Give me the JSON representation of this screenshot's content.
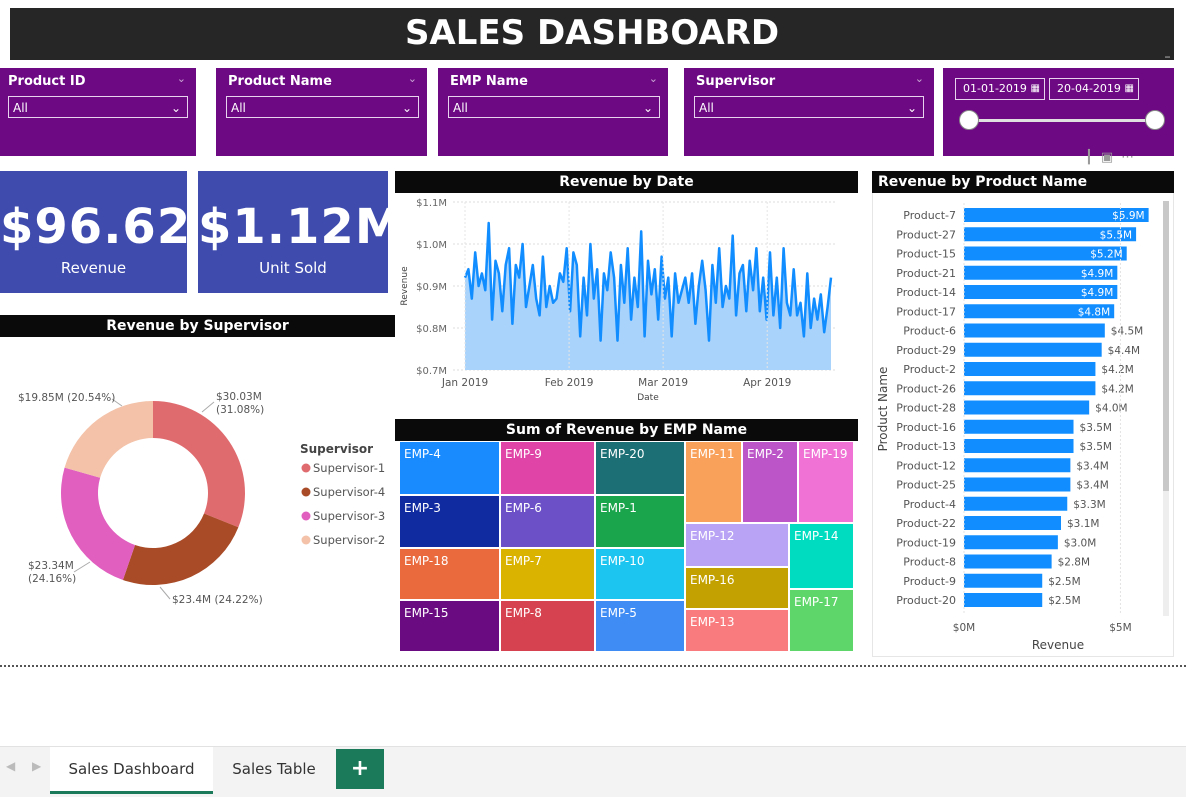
{
  "dashboard": {
    "title": "SALES DASHBOARD"
  },
  "filters": {
    "product_id": {
      "label": "Product ID",
      "value": "All"
    },
    "product_name": {
      "label": "Product Name",
      "value": "All"
    },
    "emp_name": {
      "label": "EMP Name",
      "value": "All"
    },
    "supervisor": {
      "label": "Supervisor",
      "value": "All"
    },
    "date_range": {
      "start": "01-01-2019",
      "end": "20-04-2019",
      "start_fraction": 0.0,
      "end_fraction": 1.0
    }
  },
  "kpis": {
    "revenue": {
      "value": "$96.62...",
      "caption": "Revenue"
    },
    "units": {
      "value": "$1.12M",
      "caption": "Unit Sold"
    }
  },
  "colors": {
    "slicer_bg": "#6d0a83",
    "kpi_bg": "#3f4cae",
    "line": "#118dff",
    "area": "#a9d3fb",
    "bar": "#118dff",
    "tab_accent": "#1b7a5a"
  },
  "charts": {
    "donut_title": "Revenue by Supervisor",
    "line_title": "Revenue by Date",
    "treemap_title": "Sum of Revenue by EMP Name",
    "bar_title": "Revenue by Product Name"
  },
  "chart_data": [
    {
      "type": "pie",
      "title": "Revenue by Supervisor",
      "legend_title": "Supervisor",
      "legend_position": "right",
      "hole": true,
      "slices": [
        {
          "name": "Supervisor-1",
          "value": 30.03,
          "label": "$30.03M",
          "pct": "(31.08%)",
          "color": "#e06b6f"
        },
        {
          "name": "Supervisor-4",
          "value": 23.4,
          "label": "$23.4M (24.22%)",
          "pct": "",
          "color": "#a94b27"
        },
        {
          "name": "Supervisor-3",
          "value": 23.34,
          "label": "$23.34M",
          "pct": "(24.16%)",
          "color": "#e05fbf"
        },
        {
          "name": "Supervisor-2",
          "value": 19.85,
          "label": "$19.85M (20.54%)",
          "pct": "",
          "color": "#f3c2a8"
        }
      ]
    },
    {
      "type": "area",
      "title": "Revenue by Date",
      "xlabel": "Date",
      "ylabel": "Revenue",
      "ylim": [
        0.7,
        1.1
      ],
      "yticks": [
        "$0.7M",
        "$0.8M",
        "$0.9M",
        "$1.0M",
        "$1.1M"
      ],
      "yticks_values": [
        0.7,
        0.8,
        0.9,
        1.0,
        1.1
      ],
      "xticks": [
        "Jan 2019",
        "Feb 2019",
        "Mar 2019",
        "Apr 2019"
      ],
      "xticks_days": [
        0,
        31,
        59,
        90
      ],
      "y": [
        0.92,
        0.94,
        0.87,
        0.98,
        0.9,
        0.93,
        0.89,
        1.05,
        0.82,
        0.96,
        0.93,
        0.84,
        0.95,
        0.99,
        0.81,
        0.95,
        0.92,
        1.0,
        0.85,
        0.9,
        0.95,
        0.87,
        0.83,
        0.97,
        0.85,
        0.9,
        0.86,
        0.87,
        0.93,
        0.91,
        0.99,
        0.84,
        0.98,
        0.95,
        0.78,
        0.92,
        0.83,
        1.0,
        0.87,
        0.94,
        0.77,
        0.93,
        0.89,
        0.98,
        0.92,
        0.77,
        0.95,
        0.86,
        0.99,
        0.82,
        0.92,
        0.85,
        1.03,
        0.78,
        0.96,
        0.88,
        0.94,
        0.82,
        0.97,
        0.87,
        0.92,
        0.78,
        0.93,
        0.86,
        0.89,
        0.92,
        0.86,
        0.93,
        0.81,
        0.9,
        0.96,
        0.89,
        0.77,
        0.95,
        0.86,
        0.99,
        0.85,
        0.9,
        0.87,
        1.02,
        0.83,
        0.93,
        0.95,
        0.84,
        0.96,
        0.89,
        0.99,
        0.84,
        0.92,
        0.82,
        0.98,
        0.83,
        0.92,
        0.8,
        0.99,
        0.86,
        0.83,
        0.94,
        0.83,
        0.86,
        0.78,
        0.93,
        0.8,
        0.87,
        0.82,
        0.88,
        0.79,
        0.85,
        0.92
      ]
    },
    {
      "type": "heatmap",
      "title": "Sum of Revenue by EMP Name",
      "cells": [
        {
          "name": "EMP-4",
          "color": "#1a8bff"
        },
        {
          "name": "EMP-3",
          "color": "#102a9f"
        },
        {
          "name": "EMP-18",
          "color": "#ea6a3d"
        },
        {
          "name": "EMP-15",
          "color": "#6a0b82"
        },
        {
          "name": "EMP-9",
          "color": "#e044a6"
        },
        {
          "name": "EMP-6",
          "color": "#6b50c8"
        },
        {
          "name": "EMP-7",
          "color": "#d9b300"
        },
        {
          "name": "EMP-8",
          "color": "#d6424f"
        },
        {
          "name": "EMP-20",
          "color": "#1b6f75"
        },
        {
          "name": "EMP-1",
          "color": "#1aa54c"
        },
        {
          "name": "EMP-10",
          "color": "#1bc5f0"
        },
        {
          "name": "EMP-5",
          "color": "#3f8cf5"
        },
        {
          "name": "EMP-11",
          "color": "#f9a05a"
        },
        {
          "name": "EMP-2",
          "color": "#bb55c8"
        },
        {
          "name": "EMP-19",
          "color": "#ef72d4"
        },
        {
          "name": "EMP-12",
          "color": "#b9a3f4"
        },
        {
          "name": "EMP-14",
          "color": "#00dcc0"
        },
        {
          "name": "EMP-16",
          "color": "#c3a100"
        },
        {
          "name": "EMP-17",
          "color": "#5fd669"
        },
        {
          "name": "EMP-13",
          "color": "#f97b7e"
        }
      ]
    },
    {
      "type": "bar",
      "orientation": "horizontal",
      "title": "Revenue by Product Name",
      "xlabel": "Revenue",
      "ylabel": "Product Name",
      "xlim": [
        0,
        6.2
      ],
      "xticks": [
        "$0M",
        "$5M"
      ],
      "xticks_values": [
        0,
        5
      ],
      "categories": [
        "Product-7",
        "Product-27",
        "Product-15",
        "Product-21",
        "Product-14",
        "Product-17",
        "Product-6",
        "Product-29",
        "Product-2",
        "Product-26",
        "Product-28",
        "Product-16",
        "Product-13",
        "Product-12",
        "Product-25",
        "Product-4",
        "Product-22",
        "Product-19",
        "Product-8",
        "Product-9",
        "Product-20"
      ],
      "values": [
        5.9,
        5.5,
        5.2,
        4.9,
        4.9,
        4.8,
        4.5,
        4.4,
        4.2,
        4.2,
        4.0,
        3.5,
        3.5,
        3.4,
        3.4,
        3.3,
        3.1,
        3.0,
        2.8,
        2.5,
        2.5
      ],
      "labels": [
        "$5.9M",
        "$5.5M",
        "$5.2M",
        "$4.9M",
        "$4.9M",
        "$4.8M",
        "$4.5M",
        "$4.4M",
        "$4.2M",
        "$4.2M",
        "$4.0M",
        "$3.5M",
        "$3.5M",
        "$3.4M",
        "$3.4M",
        "$3.3M",
        "$3.1M",
        "$3.0M",
        "$2.8M",
        "$2.5M",
        "$2.5M"
      ]
    }
  ],
  "tabs": [
    {
      "label": "Sales Dashboard",
      "active": true
    },
    {
      "label": "Sales Table",
      "active": false
    }
  ],
  "add_tab_label": "+",
  "icons": [
    "chevron-down-icon",
    "calendar-icon",
    "prev-page-icon",
    "next-page-icon",
    "add-page-icon"
  ]
}
